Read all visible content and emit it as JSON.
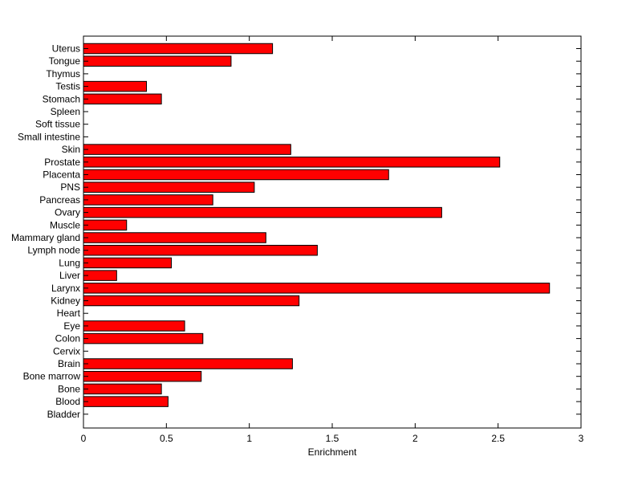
{
  "colors": {
    "bar_fill": "#ff0000",
    "bar_stroke": "#000000",
    "axis": "#000000",
    "background": "#ffffff"
  },
  "chart_data": {
    "type": "bar",
    "orientation": "horizontal",
    "title": "",
    "xlabel": "Enrichment",
    "ylabel": "",
    "xlim": [
      0,
      3
    ],
    "xticks": [
      "0",
      "0.5",
      "1",
      "1.5",
      "2",
      "2.5",
      "3"
    ],
    "grid": false,
    "legend": "none",
    "categories": [
      "Uterus",
      "Tongue",
      "Thymus",
      "Testis",
      "Stomach",
      "Spleen",
      "Soft tissue",
      "Small intestine",
      "Skin",
      "Prostate",
      "Placenta",
      "PNS",
      "Pancreas",
      "Ovary",
      "Muscle",
      "Mammary gland",
      "Lymph node",
      "Lung",
      "Liver",
      "Larynx",
      "Kidney",
      "Heart",
      "Eye",
      "Colon",
      "Cervix",
      "Brain",
      "Bone marrow",
      "Bone",
      "Blood",
      "Bladder"
    ],
    "values": [
      1.14,
      0.89,
      0,
      0.38,
      0.47,
      0,
      0,
      0,
      1.25,
      2.51,
      1.84,
      1.03,
      0.78,
      2.16,
      0.26,
      1.1,
      1.41,
      0.53,
      0.2,
      2.81,
      1.3,
      0,
      0.61,
      0.72,
      0,
      1.26,
      0.71,
      0.47,
      0.51,
      0
    ]
  }
}
